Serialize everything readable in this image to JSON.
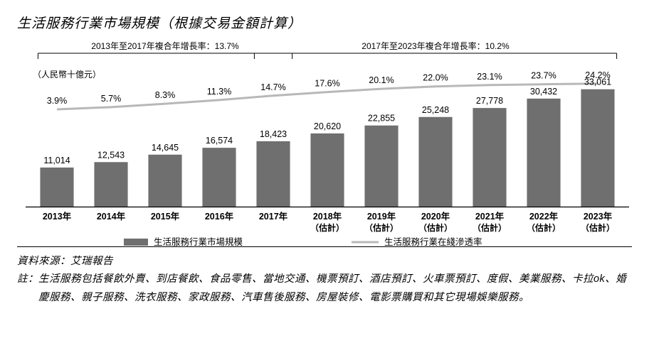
{
  "title": "生活服務行業市場規模（根據交易金額計算）",
  "unit_label": "（人民幣十億元）",
  "brackets": [
    {
      "label": "2013年至2017年複合年增長率：13.7%",
      "from_idx": 0,
      "to_idx": 4
    },
    {
      "label": "2017年至2023年複合年增長率：10.2%",
      "from_idx": 4,
      "to_idx": 10
    }
  ],
  "chart": {
    "type": "bar+line",
    "background_color": "#ffffff",
    "bar_color": "#6f6f6f",
    "line_color": "#b8b8b8",
    "axis_color": "#000000",
    "bar_width": 0.62,
    "max_value": 34000,
    "line_max_pct": 28,
    "categories": [
      "2013年",
      "2014年",
      "2015年",
      "2016年",
      "2017年",
      "2018年",
      "2019年",
      "2020年",
      "2021年",
      "2022年",
      "2023年"
    ],
    "sub_labels": [
      "",
      "",
      "",
      "",
      "",
      "（估計）",
      "（估計）",
      "（估計）",
      "（估計）",
      "（估計）",
      "（估計）"
    ],
    "bar_values": [
      11014,
      12543,
      14645,
      16574,
      18423,
      20620,
      22855,
      25248,
      27778,
      30432,
      33061
    ],
    "line_pcts": [
      3.9,
      5.7,
      8.3,
      11.3,
      14.7,
      17.6,
      20.1,
      22.0,
      23.1,
      23.7,
      24.2
    ],
    "line_labels": [
      "3.9%",
      "5.7%",
      "8.3%",
      "11.3%",
      "14.7%",
      "17.6%",
      "20.1%",
      "22.0%",
      "23.1%",
      "23.7%",
      "24.2%"
    ],
    "legend": [
      {
        "swatch": "bar",
        "text": "生活服務行業市場規模"
      },
      {
        "swatch": "line",
        "text": "生活服務行業在綫滲透率"
      }
    ],
    "fontsize_labels": 12.5,
    "fontsize_axis": 12.5
  },
  "footer": {
    "source_key": "資料來源：",
    "source_val": "艾瑞報告",
    "note_key": "註：",
    "note_val": "生活服務包括餐飲外賣、到店餐飲、食品零售、當地交通、機票預訂、酒店預訂、火車票預訂、度假、美業服務、卡拉ok、婚慶服務、親子服務、洗衣服務、家政服務、汽車售後服務、房屋裝修、電影票購買和其它現場娛樂服務。"
  }
}
